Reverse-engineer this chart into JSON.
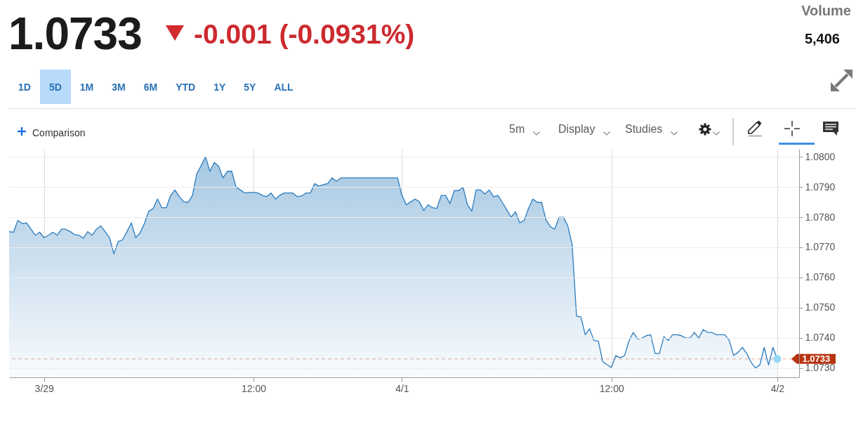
{
  "chart_data": {
    "type": "area",
    "title": "1.0733",
    "subtitle": "-0.001 (-0.0931%)",
    "annotations": [
      "Volume",
      "5,406",
      "1D",
      "5D",
      "1M",
      "3M",
      "6M",
      "YTD",
      "1Y",
      "5Y",
      "ALL",
      "Comparison",
      "5m",
      "Display",
      "Studies"
    ],
    "categories": [
      null,
      null,
      null,
      null,
      null,
      null,
      null,
      null,
      "3/29",
      null,
      null,
      null,
      null,
      null,
      null,
      null,
      null,
      null,
      null,
      null,
      null,
      null,
      null,
      null,
      null,
      null,
      null,
      null,
      null,
      null,
      null,
      null,
      null,
      null,
      null,
      null,
      null,
      null,
      null,
      null,
      null,
      null,
      null,
      null,
      null,
      null,
      null,
      null,
      null,
      null,
      null,
      null,
      null,
      null,
      null,
      null,
      "12:00",
      null,
      null,
      null,
      null,
      null,
      null,
      null,
      null,
      null,
      null,
      null,
      null,
      null,
      null,
      null,
      null,
      null,
      null,
      null,
      null,
      null,
      null,
      null,
      null,
      null,
      null,
      null,
      null,
      null,
      null,
      null,
      null,
      null,
      "4/1",
      null,
      null,
      null,
      null,
      null,
      null,
      null,
      null,
      null,
      null,
      null,
      null,
      null,
      null,
      null,
      null,
      null,
      null,
      null,
      null,
      null,
      null,
      null,
      null,
      null,
      null,
      null,
      null,
      null,
      null,
      null,
      null,
      null,
      null,
      null,
      null,
      null,
      null,
      null,
      null,
      null,
      null,
      null,
      null,
      null,
      null,
      null,
      "12:00",
      null,
      null,
      null,
      null,
      null,
      null,
      null,
      null,
      null,
      null,
      null,
      null,
      null,
      null,
      null,
      null,
      null,
      null,
      null,
      null,
      null,
      null,
      null,
      null,
      null,
      null,
      null,
      null,
      null,
      null,
      null,
      null,
      null,
      null,
      null,
      null,
      null,
      "4/2",
      null,
      null,
      null,
      null,
      null
    ],
    "series": [
      {
        "color": "#2b7bbd",
        "values": [
          1.07752,
          1.0775,
          1.07789,
          1.07779,
          1.07781,
          1.0776,
          1.0774,
          1.0775,
          1.07732,
          1.0774,
          1.0775,
          1.0774,
          1.0776,
          1.0776,
          1.07752,
          1.07742,
          1.0774,
          1.0773,
          1.07752,
          1.0774,
          1.0776,
          1.07771,
          1.07752,
          1.07732,
          1.07678,
          1.07719,
          1.07725,
          1.07752,
          1.07781,
          1.07732,
          1.07748,
          1.07779,
          1.0782,
          1.07829,
          1.0786,
          1.07831,
          1.07831,
          1.07872,
          1.0789,
          1.07868,
          1.07851,
          1.07849,
          1.07872,
          1.07944,
          1.07971,
          1.08,
          1.07952,
          1.07981,
          1.07969,
          1.0793,
          1.07952,
          1.07952,
          1.07899,
          1.0789,
          1.0788,
          1.07882,
          1.07882,
          1.0788,
          1.07872,
          1.07868,
          1.0788,
          1.0786,
          1.07872,
          1.0788,
          1.0788,
          1.0788,
          1.07868,
          1.0787,
          1.0788,
          1.0788,
          1.07911,
          1.07903,
          1.07908,
          1.07911,
          1.0793,
          1.07919,
          1.0793,
          1.0793,
          1.0793,
          1.0793,
          1.0793,
          1.0793,
          1.0793,
          1.0793,
          1.0793,
          1.0793,
          1.0793,
          1.0793,
          1.0793,
          1.0793,
          1.07872,
          1.07841,
          1.07851,
          1.0786,
          1.07851,
          1.07822,
          1.07841,
          1.07831,
          1.07829,
          1.07872,
          1.07872,
          1.07845,
          1.07888,
          1.07888,
          1.07899,
          1.07841,
          1.0782,
          1.0789,
          1.0789,
          1.07877,
          1.0789,
          1.07868,
          1.07872,
          1.07849,
          1.07825,
          1.078,
          1.07818,
          1.07781,
          1.07789,
          1.07829,
          1.0786,
          1.07849,
          1.07849,
          1.07791,
          1.07769,
          1.0776,
          1.078,
          1.078,
          1.07771,
          1.07709,
          1.07472,
          1.07469,
          1.0741,
          1.0743,
          1.07391,
          1.07389,
          1.07321,
          1.07311,
          1.07302,
          1.07341,
          1.07334,
          1.07341,
          1.07389,
          1.07418,
          1.07396,
          1.07399,
          1.07407,
          1.0741,
          1.07348,
          1.07348,
          1.07404,
          1.07391,
          1.0741,
          1.0741,
          1.07407,
          1.07399,
          1.07399,
          1.07418,
          1.07399,
          1.07427,
          1.07418,
          1.07418,
          1.0741,
          1.0741,
          1.0741,
          1.07391,
          1.07341,
          1.07352,
          1.07368,
          1.07348,
          1.07319,
          1.073,
          1.0731,
          1.07368,
          1.0731,
          1.07368,
          1.0733,
          null,
          null,
          null,
          null,
          null
        ]
      },
      {
        "type": "scatter",
        "color": "#93d8f7",
        "marker": "circle",
        "values": [
          null,
          null,
          null,
          null,
          null,
          null,
          null,
          null,
          null,
          null,
          null,
          null,
          null,
          null,
          null,
          null,
          null,
          null,
          null,
          null,
          null,
          null,
          null,
          null,
          null,
          null,
          null,
          null,
          null,
          null,
          null,
          null,
          null,
          null,
          null,
          null,
          null,
          null,
          null,
          null,
          null,
          null,
          null,
          null,
          null,
          null,
          null,
          null,
          null,
          null,
          null,
          null,
          null,
          null,
          null,
          null,
          null,
          null,
          null,
          null,
          null,
          null,
          null,
          null,
          null,
          null,
          null,
          null,
          null,
          null,
          null,
          null,
          null,
          null,
          null,
          null,
          null,
          null,
          null,
          null,
          null,
          null,
          null,
          null,
          null,
          null,
          null,
          null,
          null,
          null,
          null,
          null,
          null,
          null,
          null,
          null,
          null,
          null,
          null,
          null,
          null,
          null,
          null,
          null,
          null,
          null,
          null,
          null,
          null,
          null,
          null,
          null,
          null,
          null,
          null,
          null,
          null,
          null,
          null,
          null,
          null,
          null,
          null,
          null,
          null,
          null,
          null,
          null,
          null,
          null,
          null,
          null,
          null,
          null,
          null,
          null,
          null,
          null,
          null,
          null,
          null,
          null,
          null,
          null,
          null,
          null,
          null,
          null,
          null,
          null,
          null,
          null,
          null,
          null,
          null,
          null,
          null,
          null,
          null,
          null,
          null,
          null,
          null,
          null,
          null,
          null,
          null,
          null,
          null,
          null,
          null,
          null,
          null,
          null,
          null,
          null,
          1.0733,
          null,
          null,
          null,
          null,
          null
        ]
      }
    ],
    "ylim": [
      1.07269,
      1.08026
    ],
    "yticks": [
      {
        "value": 1.073,
        "label": "1.0730"
      },
      {
        "value": 1.074,
        "label": "1.0740"
      },
      {
        "value": 1.075,
        "label": "1.0750"
      },
      {
        "value": 1.076,
        "label": "1.0760"
      },
      {
        "value": 1.077,
        "label": "1.0770"
      },
      {
        "value": 1.078,
        "label": "1.0780"
      },
      {
        "value": 1.079,
        "label": "1.0790"
      },
      {
        "value": 1.08,
        "label": "1.0800"
      }
    ],
    "grid": true,
    "ref_lines": [
      {
        "axis": "y",
        "value": 1.0733,
        "label": "1.0733",
        "color": "#b8330f",
        "line_style": "dashed"
      }
    ]
  }
}
